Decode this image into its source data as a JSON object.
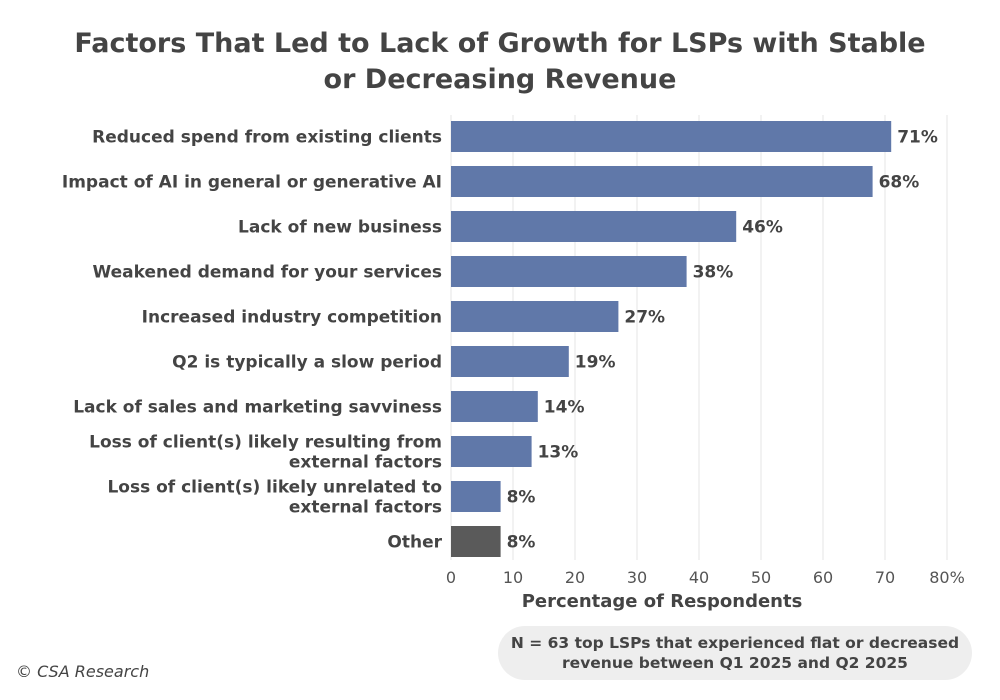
{
  "chart_data": {
    "type": "bar",
    "orientation": "horizontal",
    "title": "Factors That Led to Lack of Growth for LSPs with Stable or Decreasing Revenue",
    "categories": [
      [
        "Reduced spend from existing clients"
      ],
      [
        "Impact of AI in general or generative AI"
      ],
      [
        "Lack of new business"
      ],
      [
        "Weakened demand for your services"
      ],
      [
        "Increased industry competition"
      ],
      [
        "Q2 is typically a slow period"
      ],
      [
        "Lack of sales and marketing savviness"
      ],
      [
        "Loss of client(s) likely resulting from",
        "external factors"
      ],
      [
        "Loss of client(s) likely unrelated to",
        "external factors"
      ],
      [
        "Other"
      ]
    ],
    "values": [
      71,
      68,
      46,
      38,
      27,
      19,
      14,
      13,
      8,
      8
    ],
    "value_labels": [
      "71%",
      "68%",
      "46%",
      "38%",
      "27%",
      "19%",
      "14%",
      "13%",
      "8%",
      "8%"
    ],
    "bar_colors": [
      "#6078a9",
      "#6078a9",
      "#6078a9",
      "#6078a9",
      "#6078a9",
      "#6078a9",
      "#6078a9",
      "#6078a9",
      "#6078a9",
      "#5a5a5a"
    ],
    "xlabel": "Percentage of Respondents",
    "xlim": [
      0,
      80
    ],
    "xticks": [
      0,
      10,
      20,
      30,
      40,
      50,
      60,
      70,
      80
    ],
    "xtick_labels": [
      "0",
      "10",
      "20",
      "30",
      "40",
      "50",
      "60",
      "70",
      "80%"
    ],
    "grid": "vertical"
  },
  "title_line1": "Factors That Led to Lack of Growth for LSPs with Stable",
  "title_line2": "or Decreasing Revenue",
  "note_line1": "N = 63 top LSPs that experienced flat or decreased",
  "note_line2": "revenue between Q1 2025 and Q2 2025",
  "copyright": "© CSA Research"
}
